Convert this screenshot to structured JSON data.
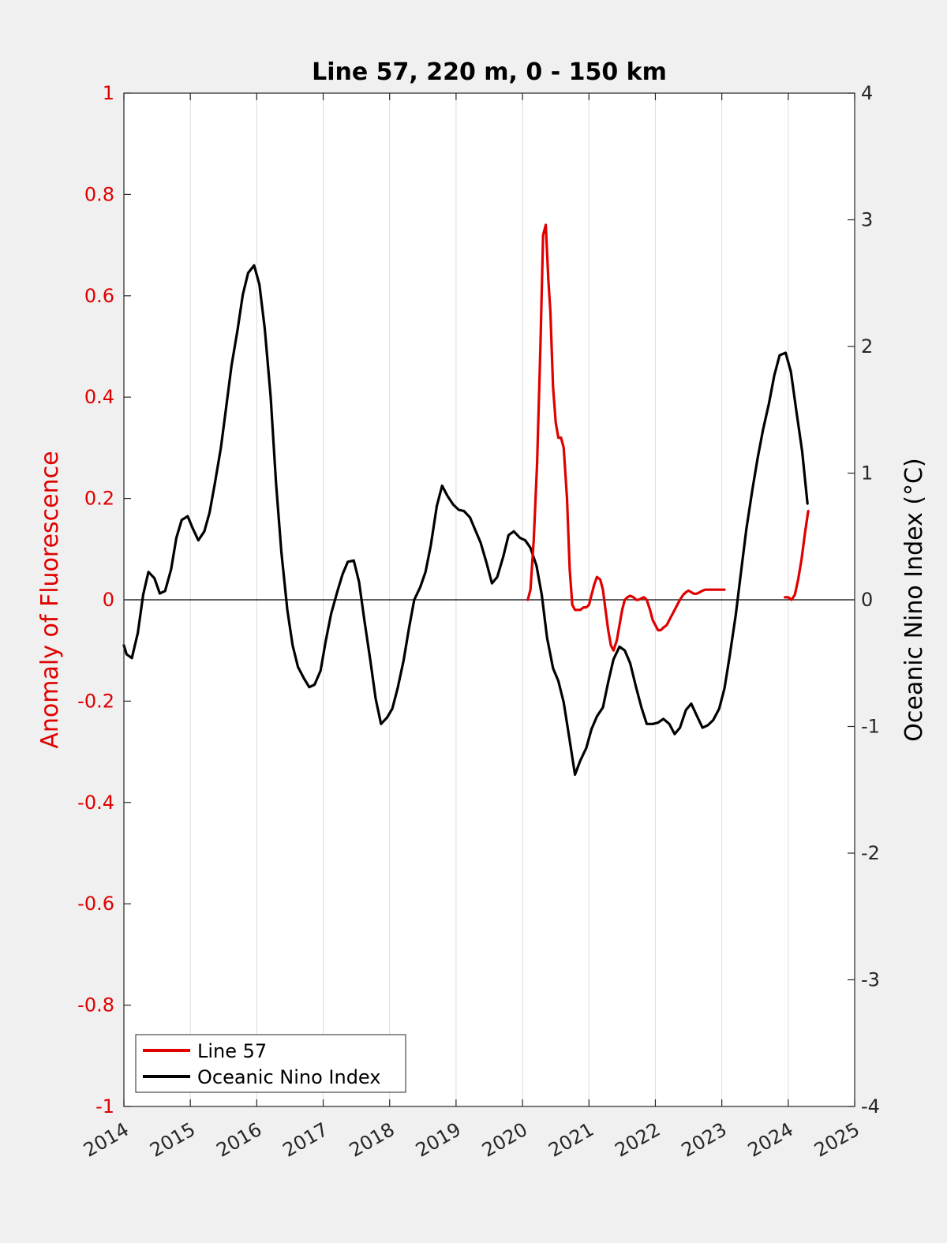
{
  "chart_data": {
    "type": "line",
    "title": "Line 57, 220 m, 0 - 150 km",
    "xlabel": "",
    "ylabel_left": "Anomaly of Fluorescence",
    "ylabel_right": "Oceanic Nino Index (°C)",
    "xlim": [
      2014,
      2025
    ],
    "ylim_left": [
      -1,
      1
    ],
    "ylim_right": [
      -4,
      4
    ],
    "xticks": [
      "2014",
      "2015",
      "2016",
      "2017",
      "2018",
      "2019",
      "2020",
      "2021",
      "2022",
      "2023",
      "2024",
      "2025"
    ],
    "yticks_left": [
      "-1",
      "-0.8",
      "-0.6",
      "-0.4",
      "-0.2",
      "0",
      "0.2",
      "0.4",
      "0.6",
      "0.8",
      "1"
    ],
    "yticks_right": [
      "-4",
      "-3",
      "-2",
      "-1",
      "0",
      "1",
      "2",
      "3",
      "4"
    ],
    "grid": "vertical",
    "legend_position": "bottom-left",
    "colors": {
      "left_axis": "#e00000",
      "right_axis": "#000000",
      "background": "#f0f0f0",
      "plot_bg": "#ffffff"
    },
    "series": [
      {
        "name": "Line 57",
        "axis": "left",
        "color": "#e00000",
        "segments": [
          {
            "x": [
              2020.08,
              2020.12,
              2020.17,
              2020.22,
              2020.27,
              2020.31,
              2020.35,
              2020.39,
              2020.42,
              2020.46,
              2020.5,
              2020.54,
              2020.58,
              2020.62,
              2020.67,
              2020.71,
              2020.75,
              2020.79,
              2020.83,
              2020.87,
              2020.92,
              2020.96,
              2021.0,
              2021.04,
              2021.08,
              2021.12,
              2021.17,
              2021.21,
              2021.25,
              2021.29,
              2021.33,
              2021.37,
              2021.42,
              2021.46,
              2021.5,
              2021.54,
              2021.58,
              2021.62,
              2021.67,
              2021.71,
              2021.75,
              2021.79,
              2021.83,
              2021.87,
              2021.92,
              2021.96,
              2022.0,
              2022.04,
              2022.08,
              2022.12,
              2022.17,
              2022.21,
              2022.25,
              2022.29,
              2022.33,
              2022.37,
              2022.42,
              2022.46,
              2022.5,
              2022.54,
              2022.58,
              2022.62,
              2022.67,
              2022.71,
              2022.75,
              2022.79,
              2022.83,
              2022.87,
              2022.92,
              2022.96,
              2023.0,
              2023.04
            ],
            "y": [
              0.0,
              0.02,
              0.12,
              0.27,
              0.5,
              0.72,
              0.74,
              0.63,
              0.57,
              0.42,
              0.35,
              0.32,
              0.32,
              0.3,
              0.2,
              0.06,
              -0.01,
              -0.02,
              -0.02,
              -0.02,
              -0.015,
              -0.015,
              -0.01,
              0.01,
              0.03,
              0.045,
              0.04,
              0.02,
              -0.02,
              -0.06,
              -0.09,
              -0.1,
              -0.08,
              -0.05,
              -0.02,
              0.0,
              0.005,
              0.008,
              0.005,
              0.0,
              0.0,
              0.003,
              0.005,
              0.0,
              -0.02,
              -0.04,
              -0.05,
              -0.06,
              -0.06,
              -0.055,
              -0.05,
              -0.04,
              -0.03,
              -0.02,
              -0.01,
              0.0,
              0.01,
              0.015,
              0.018,
              0.015,
              0.012,
              0.012,
              0.015,
              0.018,
              0.02,
              0.02,
              0.02,
              0.02,
              0.02,
              0.02,
              0.02,
              0.02
            ]
          },
          {
            "x": [
              2023.95,
              2024.0,
              2024.05,
              2024.1,
              2024.15,
              2024.2,
              2024.25,
              2024.3
            ],
            "y": [
              0.005,
              0.005,
              0.0,
              0.01,
              0.04,
              0.08,
              0.13,
              0.175
            ]
          }
        ]
      },
      {
        "name": "Oceanic Nino Index",
        "axis": "right",
        "color": "#000000",
        "segments": [
          {
            "x": [
              2014.0,
              2014.04,
              2014.12,
              2014.21,
              2014.29,
              2014.37,
              2014.46,
              2014.54,
              2014.62,
              2014.71,
              2014.79,
              2014.87,
              2014.96,
              2015.04,
              2015.12,
              2015.21,
              2015.29,
              2015.37,
              2015.46,
              2015.54,
              2015.62,
              2015.71,
              2015.79,
              2015.87,
              2015.96,
              2016.04,
              2016.12,
              2016.21,
              2016.29,
              2016.37,
              2016.46,
              2016.54,
              2016.62,
              2016.71,
              2016.79,
              2016.87,
              2016.96,
              2017.04,
              2017.12,
              2017.21,
              2017.29,
              2017.37,
              2017.46,
              2017.54,
              2017.62,
              2017.71,
              2017.79,
              2017.87,
              2017.96,
              2018.04,
              2018.12,
              2018.21,
              2018.29,
              2018.37,
              2018.46,
              2018.54,
              2018.62,
              2018.71,
              2018.79,
              2018.87,
              2018.96,
              2019.04,
              2019.12,
              2019.21,
              2019.29,
              2019.37,
              2019.46,
              2019.54,
              2019.62,
              2019.71,
              2019.79,
              2019.87,
              2019.96,
              2020.04,
              2020.12,
              2020.21,
              2020.29,
              2020.37,
              2020.46,
              2020.54,
              2020.62,
              2020.71,
              2020.79,
              2020.87,
              2020.96,
              2021.04,
              2021.12,
              2021.21,
              2021.29,
              2021.37,
              2021.46,
              2021.54,
              2021.62,
              2021.71,
              2021.79,
              2021.87,
              2021.96,
              2022.04,
              2022.12,
              2022.21,
              2022.29,
              2022.37,
              2022.46,
              2022.54,
              2022.62,
              2022.71,
              2022.79,
              2022.87,
              2022.96,
              2023.04,
              2023.12,
              2023.21,
              2023.29,
              2023.37,
              2023.46,
              2023.54,
              2023.62,
              2023.71,
              2023.79,
              2023.87,
              2023.96,
              2024.04,
              2024.12,
              2024.21,
              2024.29
            ],
            "y": [
              -0.36,
              -0.43,
              -0.46,
              -0.26,
              0.04,
              0.22,
              0.17,
              0.05,
              0.07,
              0.24,
              0.49,
              0.63,
              0.66,
              0.56,
              0.47,
              0.54,
              0.69,
              0.92,
              1.2,
              1.52,
              1.85,
              2.13,
              2.41,
              2.58,
              2.64,
              2.49,
              2.14,
              1.6,
              0.92,
              0.38,
              -0.08,
              -0.36,
              -0.53,
              -0.62,
              -0.69,
              -0.67,
              -0.56,
              -0.32,
              -0.11,
              0.06,
              0.2,
              0.3,
              0.31,
              0.14,
              -0.16,
              -0.48,
              -0.78,
              -0.98,
              -0.93,
              -0.86,
              -0.7,
              -0.48,
              -0.23,
              0.0,
              0.1,
              0.22,
              0.43,
              0.74,
              0.9,
              0.82,
              0.75,
              0.71,
              0.7,
              0.65,
              0.55,
              0.45,
              0.29,
              0.13,
              0.18,
              0.34,
              0.51,
              0.54,
              0.49,
              0.47,
              0.41,
              0.27,
              0.04,
              -0.3,
              -0.54,
              -0.64,
              -0.81,
              -1.11,
              -1.38,
              -1.27,
              -1.17,
              -1.02,
              -0.92,
              -0.85,
              -0.65,
              -0.47,
              -0.37,
              -0.4,
              -0.5,
              -0.69,
              -0.85,
              -0.98,
              -0.98,
              -0.97,
              -0.94,
              -0.98,
              -1.06,
              -1.01,
              -0.87,
              -0.82,
              -0.91,
              -1.01,
              -0.99,
              -0.95,
              -0.86,
              -0.7,
              -0.44,
              -0.12,
              0.22,
              0.56,
              0.87,
              1.12,
              1.34,
              1.55,
              1.77,
              1.93,
              1.95,
              1.8,
              1.5,
              1.17,
              0.76
            ]
          }
        ]
      }
    ]
  }
}
